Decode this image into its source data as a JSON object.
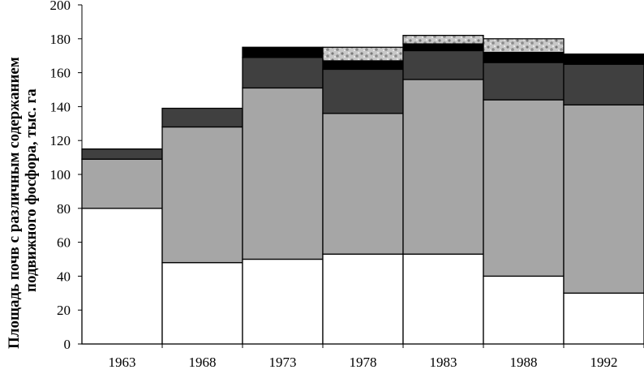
{
  "chart_data": {
    "type": "bar",
    "stacked": true,
    "title": "",
    "xlabel": "",
    "ylabel": "Площадь почв с различным содержанием подвижного фосфора, тыс. га",
    "ylabel_lines": [
      "Площадь почв с различным содержанием",
      "подвижного фосфора, тыс. га"
    ],
    "ylim": [
      0,
      200
    ],
    "yticks": [
      0,
      20,
      40,
      60,
      80,
      100,
      120,
      140,
      160,
      180,
      200
    ],
    "categories": [
      "1963",
      "1968",
      "1973",
      "1978",
      "1983",
      "1988",
      "1992"
    ],
    "grid": false,
    "legend": "none",
    "series": [
      {
        "color": "#ffffff",
        "values": [
          80,
          48,
          50,
          53,
          53,
          40,
          30
        ]
      },
      {
        "color": "#a6a6a6",
        "values": [
          29,
          80,
          101,
          83,
          103,
          104,
          111
        ]
      },
      {
        "color": "#404040",
        "values": [
          6,
          11,
          18,
          26,
          17,
          22,
          24
        ]
      },
      {
        "color": "#000000",
        "values": [
          0,
          0,
          6,
          5,
          4,
          6,
          6
        ]
      },
      {
        "color": "mottled-gray",
        "values": [
          0,
          0,
          0,
          8,
          5,
          8,
          0
        ]
      }
    ]
  }
}
